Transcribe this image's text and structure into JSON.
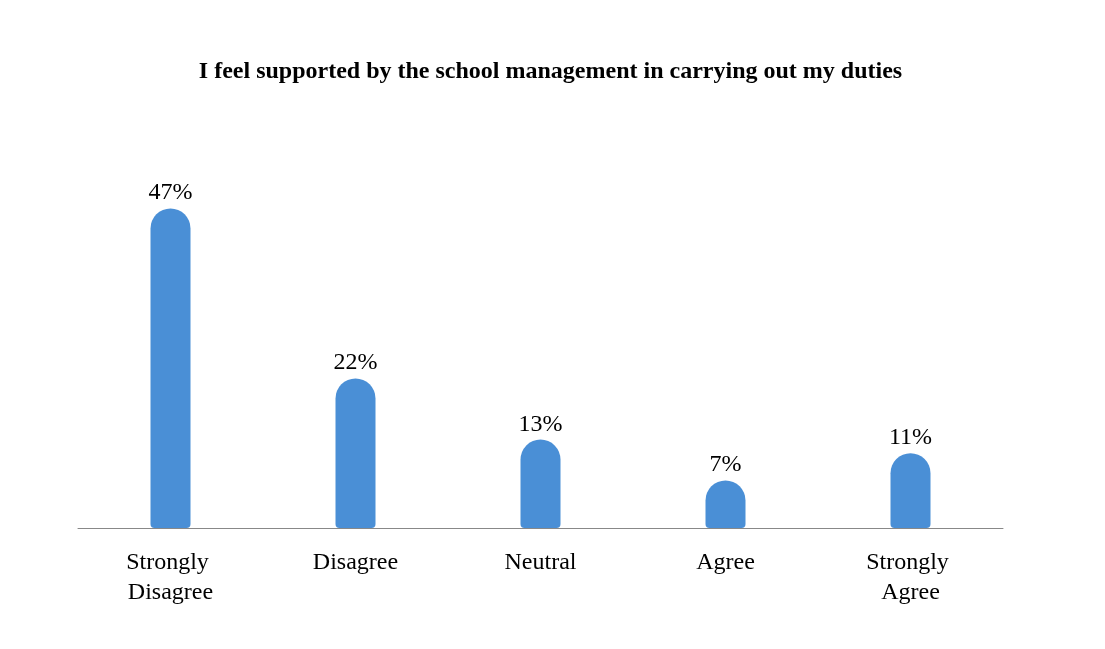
{
  "chart_data": {
    "type": "bar",
    "title": "I feel supported by the school management in carrying out my duties",
    "categories": [
      "Strongly Disagree",
      "Disagree",
      "Neutral",
      "Agree",
      "Strongly Agree"
    ],
    "values": [
      47,
      22,
      13,
      7,
      11
    ],
    "value_labels": [
      "47%",
      "22%",
      "13%",
      "7%",
      "11%"
    ],
    "color": "#4a8fd6",
    "tick_labels": "x",
    "grid": false
  }
}
